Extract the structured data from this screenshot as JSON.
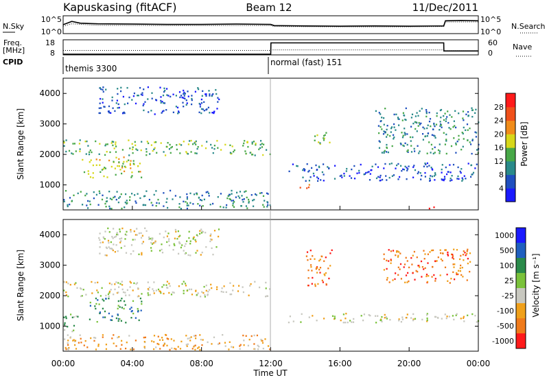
{
  "header": {
    "station": "Kapuskasing (fitACF)",
    "beam": "Beam 12",
    "date": "11/Dec/2011"
  },
  "chart_data": [
    {
      "type": "line",
      "panel": "noise",
      "left_label": "N.Sky",
      "right_label": "N.Search",
      "yticks_left": [
        "10^5",
        "10^0"
      ],
      "yticks_right": [
        "10^5",
        "10^0"
      ],
      "series": [
        {
          "name": "N.Sky",
          "style": "solid",
          "x": [
            0,
            0.5,
            1,
            2,
            4,
            6,
            8,
            10,
            12,
            12.2,
            14,
            16,
            18,
            20,
            22,
            22.1,
            23,
            24
          ],
          "y": [
            2.5,
            3.6,
            3.0,
            2.8,
            2.7,
            2.6,
            2.6,
            2.7,
            2.6,
            2.2,
            2.1,
            2.0,
            2.1,
            2.0,
            2.1,
            3.8,
            3.9,
            3.8
          ]
        },
        {
          "name": "N.Search",
          "style": "dotted",
          "x": [
            0,
            0.5,
            2,
            6,
            10,
            12,
            12.2,
            16,
            20,
            22,
            22.1,
            24
          ],
          "y": [
            2.0,
            2.8,
            2.3,
            2.2,
            2.2,
            2.2,
            1.9,
            1.8,
            1.8,
            1.9,
            3.4,
            3.4
          ]
        }
      ]
    },
    {
      "type": "line",
      "panel": "frequency",
      "left_label": "Freq.",
      "left_unit": "[MHz]",
      "right_label": "Nave",
      "yticks_left": [
        "18",
        "8"
      ],
      "yticks_right": [
        "60",
        "0"
      ],
      "series": [
        {
          "name": "Nave",
          "style": "solid",
          "x": [
            0,
            12,
            12.01,
            22,
            22.01,
            24
          ],
          "y": [
            0,
            0,
            52,
            52,
            15,
            15
          ]
        },
        {
          "name": "Freq.",
          "style": "dotted",
          "x": [
            0,
            12,
            12.01,
            22,
            22.01,
            24
          ],
          "y": [
            10.9,
            10.9,
            11.3,
            11.3,
            10.7,
            10.7
          ]
        }
      ]
    },
    {
      "type": "table",
      "panel": "cpid",
      "label": "CPID",
      "segments": [
        {
          "start": 0,
          "end": 12,
          "text": "themis 3300"
        },
        {
          "start": 12,
          "end": 24,
          "text": "normal (fast) 151"
        }
      ]
    },
    {
      "type": "heatmap",
      "panel": "power",
      "ylabel": "Slant Range [km]",
      "yticks": [
        "1000",
        "2000",
        "3000",
        "4000"
      ],
      "ylim": [
        180,
        4500
      ],
      "xlim": [
        0,
        24
      ],
      "colorbar_label": "Power [dB]",
      "colorbar_ticks": [
        "4",
        "8",
        "12",
        "16",
        "20",
        "24",
        "28"
      ],
      "colors": [
        "#1a1aff",
        "#1f4fbf",
        "#2a8a8a",
        "#48a848",
        "#d7d71a",
        "#f08c1a",
        "#f0501a",
        "#ff1a1a"
      ],
      "regions": [
        {
          "t0": 0.0,
          "t1": 12.0,
          "r0": 1950,
          "r1": 2450,
          "level": 3
        },
        {
          "t0": 1.0,
          "t1": 4.5,
          "r0": 1200,
          "r1": 1900,
          "level": 4
        },
        {
          "t0": 2.0,
          "t1": 9.0,
          "r0": 3300,
          "r1": 4200,
          "level": 1
        },
        {
          "t0": 0.0,
          "t1": 12.0,
          "r0": 200,
          "r1": 800,
          "level": 2
        },
        {
          "t0": 13.5,
          "t1": 14.3,
          "r0": 800,
          "r1": 1000,
          "level": 5
        },
        {
          "t0": 13.0,
          "t1": 24.0,
          "r0": 1100,
          "r1": 1700,
          "level": 1
        },
        {
          "t0": 14.5,
          "t1": 15.5,
          "r0": 2300,
          "r1": 2800,
          "level": 3
        },
        {
          "t0": 18.0,
          "t1": 24.0,
          "r0": 2000,
          "r1": 3500,
          "level": 2
        },
        {
          "t0": 21.0,
          "t1": 21.5,
          "r0": 200,
          "r1": 350,
          "level": 7
        }
      ]
    },
    {
      "type": "heatmap",
      "panel": "velocity",
      "ylabel": "Slant Range [km]",
      "yticks": [
        "1000",
        "2000",
        "3000",
        "4000"
      ],
      "ylim": [
        180,
        4500
      ],
      "xlim": [
        0,
        24
      ],
      "xticks": [
        "00:00",
        "04:00",
        "08:00",
        "12:00",
        "16:00",
        "20:00",
        "00:00"
      ],
      "xlabel": "Time UT",
      "colorbar_label": "Velocity [m s⁻¹]",
      "colorbar_ticks": [
        "1000",
        "500",
        "100",
        "25",
        "-25",
        "-100",
        "-500",
        "-1000"
      ],
      "colors": [
        "#1a1aff",
        "#1f5fbf",
        "#2a8a4a",
        "#7ac23a",
        "#c8c8c0",
        "#f0a01a",
        "#f07a1a",
        "#ff1a1a"
      ],
      "regions": [
        {
          "t0": 0.0,
          "t1": 12.0,
          "r0": 1950,
          "r1": 2450,
          "level": 4
        },
        {
          "t0": 1.5,
          "t1": 4.5,
          "r0": 1100,
          "r1": 1900,
          "level": 2
        },
        {
          "t0": 0.0,
          "t1": 1.0,
          "r0": 800,
          "r1": 1400,
          "level": 3
        },
        {
          "t0": 2.0,
          "t1": 9.0,
          "r0": 3300,
          "r1": 4200,
          "level": 4
        },
        {
          "t0": 13.0,
          "t1": 24.0,
          "r0": 1100,
          "r1": 1400,
          "level": 4
        },
        {
          "t0": 14.0,
          "t1": 15.5,
          "r0": 2300,
          "r1": 3500,
          "level": 6
        },
        {
          "t0": 18.5,
          "t1": 23.5,
          "r0": 2400,
          "r1": 3500,
          "level": 6
        },
        {
          "t0": 0.0,
          "t1": 12.0,
          "r0": 200,
          "r1": 700,
          "level": 5
        }
      ]
    }
  ]
}
